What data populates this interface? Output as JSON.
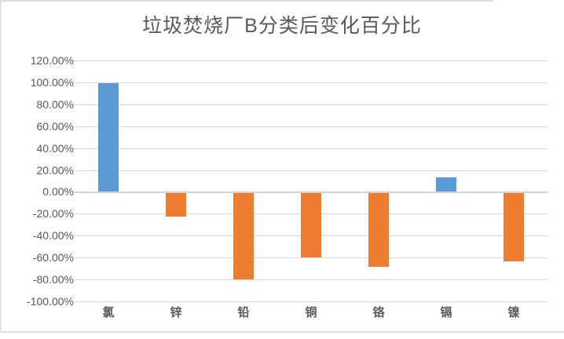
{
  "chart": {
    "title": "垃圾焚烧厂B分类后变化百分比"
  },
  "chart_data": {
    "type": "bar",
    "title": "垃圾焚烧厂B分类后变化百分比",
    "xlabel": "",
    "ylabel": "",
    "categories": [
      "氯",
      "锌",
      "铅",
      "铜",
      "铬",
      "镉",
      "镍"
    ],
    "values": [
      99,
      -23,
      -80,
      -60,
      -69,
      13,
      -64
    ],
    "value_unit": "percent",
    "ylim": [
      -100,
      120
    ],
    "ytick_step": 20,
    "ytick_labels": [
      "120.00%",
      "100.00%",
      "80.00%",
      "60.00%",
      "40.00%",
      "20.00%",
      "0.00%",
      "-20.00%",
      "-40.00%",
      "-60.00%",
      "-80.00%",
      "-100.00%"
    ],
    "grid": true,
    "legend": false,
    "colors": {
      "positive": "#5B9BD5",
      "negative": "#ED7D31",
      "gridline": "#D9D9D9",
      "zero_axis": "#D2D2D2",
      "text": "#595959"
    }
  }
}
